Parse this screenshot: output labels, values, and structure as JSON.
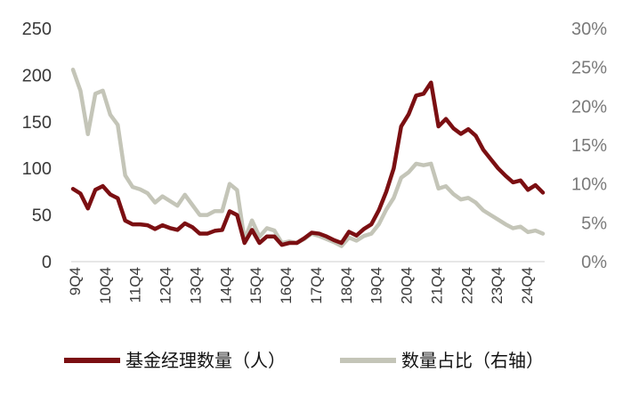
{
  "chart_data": {
    "type": "line",
    "x_tick_labels": [
      "9Q4",
      "10Q4",
      "11Q4",
      "12Q4",
      "13Q4",
      "14Q4",
      "15Q4",
      "16Q4",
      "17Q4",
      "18Q4",
      "19Q4",
      "20Q4",
      "21Q4",
      "22Q4",
      "23Q4",
      "24Q4"
    ],
    "y_left": {
      "ticks": [
        "0",
        "50",
        "100",
        "150",
        "200",
        "250"
      ],
      "ylim": [
        0,
        250
      ]
    },
    "y_right": {
      "ticks": [
        "0%",
        "5%",
        "10%",
        "15%",
        "20%",
        "25%",
        "30%"
      ],
      "ylim": [
        0,
        30
      ]
    },
    "series": [
      {
        "name": "基金经理数量（人）",
        "axis": "left",
        "color": "#7b0f12",
        "values": [
          78,
          73,
          57,
          77,
          81,
          72,
          68,
          44,
          40,
          40,
          39,
          35,
          39,
          36,
          34,
          41,
          37,
          30,
          30,
          33,
          34,
          54,
          50,
          20,
          34,
          20,
          27,
          27,
          18,
          20,
          20,
          25,
          31,
          30,
          27,
          23,
          20,
          32,
          28,
          35,
          40,
          55,
          75,
          100,
          145,
          158,
          178,
          180,
          192,
          145,
          153,
          143,
          137,
          142,
          135,
          120,
          110,
          100,
          92,
          85,
          87,
          77,
          82,
          74
        ],
        "series_style": "solid"
      },
      {
        "name": "数量占比（右轴）",
        "axis": "right",
        "color": "#c4c5b8",
        "values": [
          24.7,
          22.0,
          16.4,
          21.6,
          22.0,
          18.9,
          17.6,
          11.1,
          9.6,
          9.3,
          8.8,
          7.6,
          8.4,
          7.8,
          7.2,
          8.6,
          7.3,
          6.0,
          6.0,
          6.5,
          6.5,
          10.0,
          9.2,
          2.8,
          5.3,
          3.2,
          4.3,
          4.0,
          2.4,
          2.6,
          2.4,
          2.9,
          3.6,
          3.3,
          2.9,
          2.5,
          2.0,
          3.1,
          2.7,
          3.3,
          3.6,
          4.8,
          6.7,
          8.2,
          10.8,
          11.5,
          12.6,
          12.4,
          12.6,
          9.4,
          9.7,
          8.7,
          8.0,
          8.2,
          7.6,
          6.6,
          6.0,
          5.4,
          4.8,
          4.3,
          4.5,
          3.8,
          4.0,
          3.6
        ]
      }
    ],
    "legend_position": "bottom",
    "grid": false
  }
}
